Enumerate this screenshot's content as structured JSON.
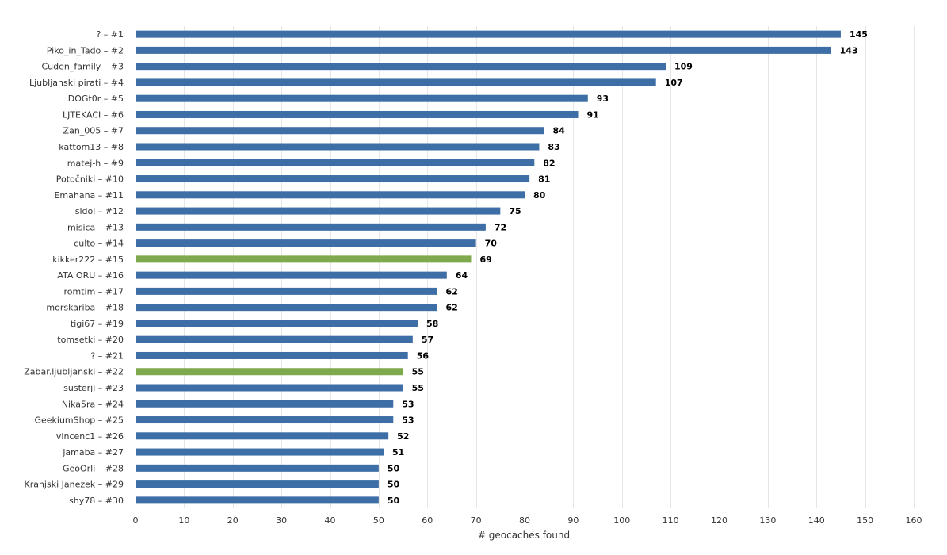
{
  "chart_data": {
    "type": "bar",
    "orientation": "horizontal",
    "categories": [
      "? – #1",
      "Piko_in_Tado – #2",
      "Cuden_family – #3",
      "Ljubljanski pirati – #4",
      "DOGt0r – #5",
      "LJTEKACI – #6",
      "Zan_005 – #7",
      "kattom13 – #8",
      "matej-h – #9",
      "Potočniki – #10",
      "Emahana – #11",
      "sidol – #12",
      "misica – #13",
      "culto – #14",
      "kikker222 – #15",
      "ATA ORU – #16",
      "romtim – #17",
      "morskariba – #18",
      "tigi67 – #19",
      "tomsetki – #20",
      "? – #21",
      "Zabar.ljubljanski – #22",
      "susterji – #23",
      "Nika5ra – #24",
      "GeekiumShop – #25",
      "vincenc1 – #26",
      "jamaba – #27",
      "GeoOrli – #28",
      "Kranjski Janezek – #29",
      "shy78 – #30"
    ],
    "values": [
      145,
      143,
      109,
      107,
      93,
      91,
      84,
      83,
      82,
      81,
      80,
      75,
      72,
      70,
      69,
      64,
      62,
      62,
      58,
      57,
      56,
      55,
      55,
      53,
      53,
      52,
      51,
      50,
      50,
      50
    ],
    "highlighted": [
      false,
      false,
      false,
      false,
      false,
      false,
      false,
      false,
      false,
      false,
      false,
      false,
      false,
      false,
      true,
      false,
      false,
      false,
      false,
      false,
      false,
      true,
      false,
      false,
      false,
      false,
      false,
      false,
      false,
      false
    ],
    "colors": {
      "default": "#3d6ea5",
      "highlight": "#7eaa4d"
    },
    "xlabel": "# geocaches found",
    "xlim": [
      0,
      160
    ],
    "xticks": [
      0,
      10,
      20,
      30,
      40,
      50,
      60,
      70,
      80,
      90,
      100,
      110,
      120,
      130,
      140,
      150,
      160
    ],
    "grid": "vertical",
    "data_labels": true
  }
}
